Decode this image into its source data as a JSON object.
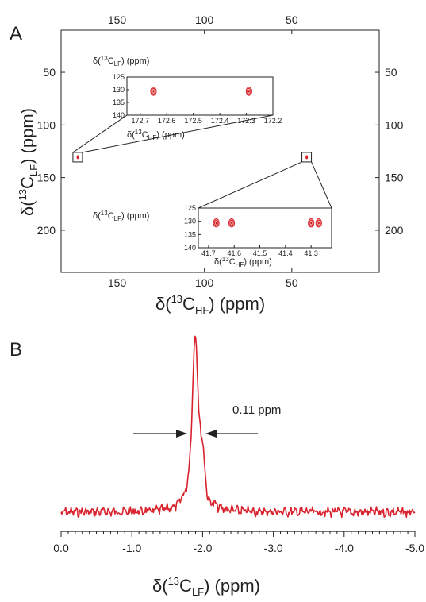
{
  "panels": {
    "a_label": "A",
    "b_label": "B"
  },
  "chart_data": [
    {
      "type": "scatter",
      "panel": "A",
      "x_ticks": [
        "150",
        "100",
        "50"
      ],
      "y_ticks": [
        "50",
        "100",
        "150",
        "200"
      ],
      "xlabel": {
        "prefix": "δ(",
        "sup": "13",
        "base": "C",
        "sub": "HF",
        "suffix": ") (ppm)"
      },
      "ylabel": {
        "prefix": "δ(",
        "sup": "13",
        "base": "C",
        "sub": "LF",
        "suffix": ") (ppm)"
      },
      "xlim": [
        182,
        0
      ],
      "ylim": [
        10,
        240
      ],
      "grid": false,
      "points": [
        {
          "x": 172.65,
          "y": 130.6
        },
        {
          "x": 172.29,
          "y": 130.6
        },
        {
          "x": 41.67,
          "y": 130.6
        },
        {
          "x": 41.61,
          "y": 130.6
        },
        {
          "x": 41.3,
          "y": 130.6
        },
        {
          "x": 41.27,
          "y": 130.6
        }
      ],
      "insets": [
        {
          "xlim": [
            172.75,
            172.2
          ],
          "ylim": [
            125,
            140
          ],
          "x_ticks": [
            "172.7",
            "172.6",
            "172.5",
            "172.4",
            "172.3",
            "172.2"
          ],
          "y_ticks": [
            "125",
            "130",
            "135",
            "140"
          ],
          "xlabel": {
            "prefix": "δ(",
            "sup": "13",
            "base": "C",
            "sub": "HF",
            "suffix": ") (ppm)"
          },
          "ylabel": {
            "prefix": "δ(",
            "sup": "13",
            "base": "C",
            "sub": "LF",
            "suffix": ") (ppm)"
          },
          "peaks": [
            {
              "x": 172.65,
              "y": 130.6
            },
            {
              "x": 172.29,
              "y": 130.6
            }
          ]
        },
        {
          "xlim": [
            41.74,
            41.22
          ],
          "ylim": [
            125,
            140
          ],
          "x_ticks": [
            "41.7",
            "41.6",
            "41.5",
            "41.4",
            "41.3"
          ],
          "y_ticks": [
            "125",
            "130",
            "135",
            "140"
          ],
          "xlabel": {
            "prefix": "δ(",
            "sup": "13",
            "base": "C",
            "sub": "HF",
            "suffix": ") (ppm)"
          },
          "ylabel": {
            "prefix": "δ(",
            "sup": "13",
            "base": "C",
            "sub": "LF",
            "suffix": ") (ppm)"
          },
          "peaks": [
            {
              "x": 41.67,
              "y": 130.6
            },
            {
              "x": 41.61,
              "y": 130.6
            },
            {
              "x": 41.3,
              "y": 130.6
            },
            {
              "x": 41.27,
              "y": 130.6
            }
          ]
        }
      ]
    },
    {
      "type": "line",
      "panel": "B",
      "x_ticks": [
        "0.0",
        "-1.0",
        "-2.0",
        "-3.0",
        "-4.0",
        "-5.0"
      ],
      "xlim": [
        0.0,
        -5.0
      ],
      "xlabel": {
        "prefix": "δ(",
        "sup": "13",
        "base": "C",
        "sub": "LF",
        "suffix": ") (ppm)"
      },
      "annotation": "0.11 ppm",
      "peak_center": -1.9,
      "linewidth_ppm": 0.11,
      "series_color": "#d9232e",
      "grid": false
    }
  ]
}
